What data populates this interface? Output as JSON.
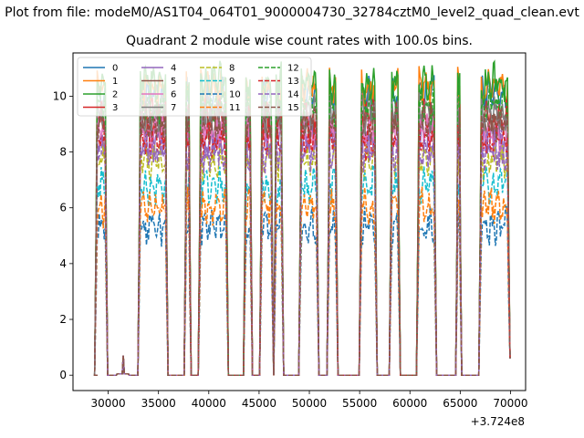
{
  "chart_data": {
    "type": "line",
    "suptitle": "Plot from file: modeM0/AS1T04_064T01_9000004730_32784cztM0_level2_quad_clean.evt",
    "title": "Quadrant 2 module wise count rates with 100.0s bins.",
    "xlabel": "",
    "ylabel": "",
    "x_offset_label": "+3.724e8",
    "xlim": [
      26500,
      71500
    ],
    "ylim": [
      -0.55,
      11.55
    ],
    "x_ticks": [
      30000,
      35000,
      40000,
      45000,
      50000,
      55000,
      60000,
      65000,
      70000
    ],
    "x_tick_labels": [
      "30000",
      "35000",
      "40000",
      "45000",
      "50000",
      "55000",
      "60000",
      "65000",
      "70000"
    ],
    "y_ticks": [
      0,
      2,
      4,
      6,
      8,
      10
    ],
    "y_tick_labels": [
      "0",
      "2",
      "4",
      "6",
      "8",
      "10"
    ],
    "legend": {
      "location": "upper-left",
      "columns": 4
    },
    "segments": [
      {
        "start": 28800,
        "end": 29800,
        "high": true
      },
      {
        "start": 30800,
        "end": 32100,
        "high": false
      },
      {
        "start": 33100,
        "end": 35800,
        "high": true
      },
      {
        "start": 37700,
        "end": 38100,
        "high": true
      },
      {
        "start": 39100,
        "end": 41800,
        "high": true
      },
      {
        "start": 43600,
        "end": 44200,
        "high": true
      },
      {
        "start": 45200,
        "end": 46300,
        "high": true
      },
      {
        "start": 46600,
        "end": 47300,
        "high": true
      },
      {
        "start": 49100,
        "end": 50800,
        "high": true
      },
      {
        "start": 51900,
        "end": 52700,
        "high": true
      },
      {
        "start": 55100,
        "end": 56600,
        "high": true
      },
      {
        "start": 58100,
        "end": 58900,
        "high": true
      },
      {
        "start": 60800,
        "end": 62500,
        "high": true
      },
      {
        "start": 64700,
        "end": 65000,
        "high": true
      },
      {
        "start": 67000,
        "end": 69800,
        "high": true
      }
    ],
    "series": [
      {
        "name": "0",
        "color": "#1f77b4",
        "dash": "solid",
        "level": 10.0
      },
      {
        "name": "1",
        "color": "#ff7f0e",
        "dash": "solid",
        "level": 10.3
      },
      {
        "name": "2",
        "color": "#2ca02c",
        "dash": "solid",
        "level": 10.5
      },
      {
        "name": "3",
        "color": "#d62728",
        "dash": "solid",
        "level": 9.2
      },
      {
        "name": "4",
        "color": "#9467bd",
        "dash": "solid",
        "level": 8.3
      },
      {
        "name": "5",
        "color": "#8c564b",
        "dash": "solid",
        "level": 9.0
      },
      {
        "name": "6",
        "color": "#e377c2",
        "dash": "solid",
        "level": 8.7
      },
      {
        "name": "7",
        "color": "#7f7f7f",
        "dash": "solid",
        "level": 9.4
      },
      {
        "name": "8",
        "color": "#bcbd22",
        "dash": "dashed",
        "level": 7.7
      },
      {
        "name": "9",
        "color": "#17becf",
        "dash": "dashed",
        "level": 6.8
      },
      {
        "name": "10",
        "color": "#1f77b4",
        "dash": "dashed",
        "level": 5.3
      },
      {
        "name": "11",
        "color": "#ff7f0e",
        "dash": "dashed",
        "level": 6.0
      },
      {
        "name": "12",
        "color": "#2ca02c",
        "dash": "dashed",
        "level": 9.7
      },
      {
        "name": "13",
        "color": "#d62728",
        "dash": "dashed",
        "level": 8.4
      },
      {
        "name": "14",
        "color": "#9467bd",
        "dash": "dashed",
        "level": 8.0
      },
      {
        "name": "15",
        "color": "#8c564b",
        "dash": "dashed",
        "level": 9.1
      }
    ]
  }
}
